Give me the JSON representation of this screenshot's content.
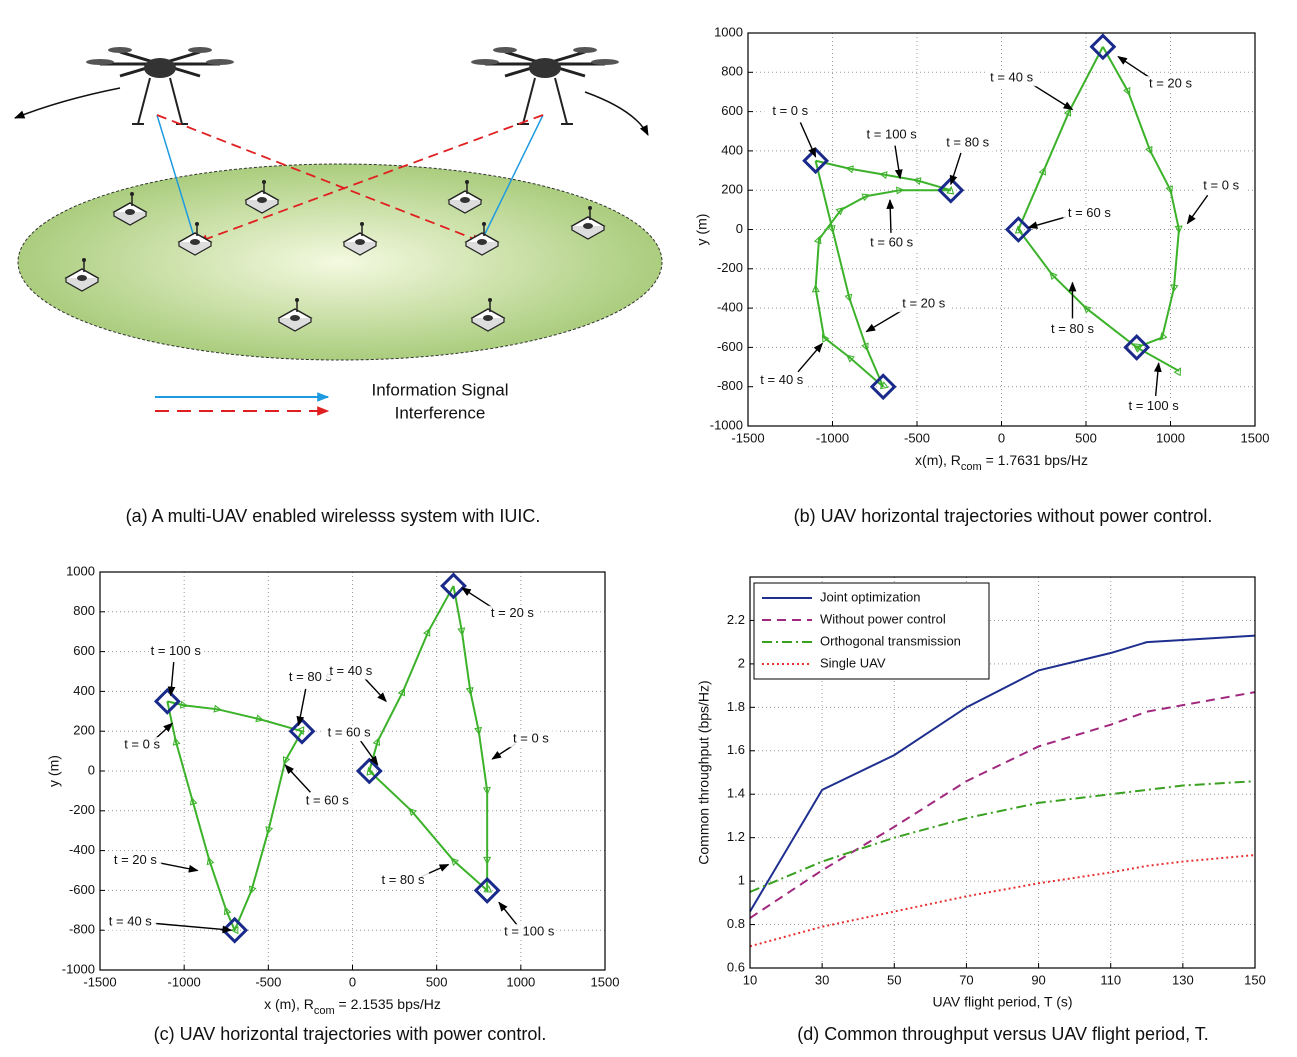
{
  "diagram": {
    "caption": "(a) A multi-UAV enabled wirelesss system with IUIC.",
    "legend": [
      "Information Signal",
      "Interference"
    ]
  },
  "chart_data": [
    {
      "type": "line",
      "caption": "(b) UAV horizontal trajectories without power control.",
      "xlabel": [
        "x(m), R",
        "com",
        " = 1.7631 bps/Hz"
      ],
      "ylabel": "y (m)",
      "xlim": [
        -1500,
        1500
      ],
      "ylim": [
        -1000,
        1000
      ],
      "xticks": [
        -1500,
        -1000,
        -500,
        0,
        500,
        1000,
        1500
      ],
      "yticks": [
        -1000,
        -800,
        -600,
        -400,
        -200,
        0,
        200,
        400,
        600,
        800,
        1000
      ],
      "grid": true,
      "direction_markers": true,
      "series": [
        {
          "color": "#3cb22a",
          "x": [
            -1100,
            -1000,
            -900,
            -800,
            -700,
            -900,
            -1050,
            -1100,
            -1080,
            -950,
            -800,
            -600,
            -300,
            -500,
            -700,
            -900,
            -1100
          ],
          "values": [
            350,
            0,
            -350,
            -600,
            -800,
            -650,
            -550,
            -300,
            -50,
            100,
            170,
            200,
            200,
            250,
            280,
            310,
            350
          ]
        },
        {
          "color": "#3cb22a",
          "x": [
            600,
            750,
            880,
            1000,
            1050,
            1020,
            950,
            800,
            1050,
            800,
            500,
            300,
            100,
            250,
            400,
            600
          ],
          "values": [
            930,
            700,
            400,
            200,
            0,
            -300,
            -550,
            -600,
            -720,
            -600,
            -400,
            -230,
            0,
            300,
            600,
            930
          ]
        }
      ],
      "markers": {
        "color": "#1a2a8a",
        "x": [
          -1100,
          -300,
          -700,
          600,
          100,
          800
        ],
        "values": [
          350,
          200,
          -800,
          930,
          0,
          -600
        ]
      },
      "annotations": [
        {
          "text": "t = 0 s",
          "xy": [
            -1100,
            370
          ],
          "xytext": [
            -1250,
            600
          ]
        },
        {
          "text": "t = 100 s",
          "xy": [
            -600,
            260
          ],
          "xytext": [
            -650,
            480
          ]
        },
        {
          "text": "t = 80 s",
          "xy": [
            -300,
            230
          ],
          "xytext": [
            -200,
            440
          ]
        },
        {
          "text": "t = 60 s",
          "xy": [
            -660,
            150
          ],
          "xytext": [
            -650,
            -70
          ]
        },
        {
          "text": "t = 20 s",
          "xy": [
            -800,
            -520
          ],
          "xytext": [
            -460,
            -380
          ]
        },
        {
          "text": "t = 40 s",
          "xy": [
            -1060,
            -580
          ],
          "xytext": [
            -1300,
            -770
          ]
        },
        {
          "text": "t = 40 s",
          "xy": [
            420,
            610
          ],
          "xytext": [
            60,
            770
          ]
        },
        {
          "text": "t = 20 s",
          "xy": [
            690,
            880
          ],
          "xytext": [
            1000,
            740
          ]
        },
        {
          "text": "t = 0 s",
          "xy": [
            1100,
            30
          ],
          "xytext": [
            1300,
            220
          ]
        },
        {
          "text": "t = 60 s",
          "xy": [
            160,
            10
          ],
          "xytext": [
            520,
            80
          ]
        },
        {
          "text": "t = 80 s",
          "xy": [
            420,
            -270
          ],
          "xytext": [
            420,
            -510
          ]
        },
        {
          "text": "t = 100 s",
          "xy": [
            930,
            -680
          ],
          "xytext": [
            900,
            -900
          ]
        }
      ]
    },
    {
      "type": "line",
      "caption": "(c) UAV horizontal trajectories with power control.",
      "xlabel": [
        "x (m), R",
        "com",
        " = 2.1535 bps/Hz"
      ],
      "ylabel": "y (m)",
      "xlim": [
        -1500,
        1500
      ],
      "ylim": [
        -1000,
        1000
      ],
      "xticks": [
        -1500,
        -1000,
        -500,
        0,
        500,
        1000,
        1500
      ],
      "yticks": [
        -1000,
        -800,
        -600,
        -400,
        -200,
        0,
        200,
        400,
        600,
        800,
        1000
      ],
      "grid": true,
      "direction_markers": true,
      "series": [
        {
          "color": "#3cb22a",
          "x": [
            -1100,
            -1000,
            -800,
            -550,
            -300,
            -400,
            -500,
            -600,
            -700,
            -750,
            -850,
            -950,
            -1050,
            -1100
          ],
          "values": [
            350,
            330,
            310,
            260,
            200,
            50,
            -300,
            -600,
            -800,
            -700,
            -450,
            -150,
            150,
            350
          ]
        },
        {
          "color": "#3cb22a",
          "x": [
            600,
            650,
            700,
            750,
            800,
            800,
            800,
            600,
            350,
            100,
            150,
            300,
            450,
            600
          ],
          "values": [
            930,
            700,
            400,
            200,
            -100,
            -450,
            -600,
            -450,
            -200,
            0,
            150,
            400,
            700,
            930
          ]
        }
      ],
      "markers": {
        "color": "#1a2a8a",
        "x": [
          -1100,
          -300,
          -700,
          600,
          100,
          800
        ],
        "values": [
          350,
          200,
          -800,
          930,
          0,
          -600
        ]
      },
      "annotations": [
        {
          "text": "t = 100 s",
          "xy": [
            -1080,
            380
          ],
          "xytext": [
            -1050,
            600
          ]
        },
        {
          "text": "t = 0 s",
          "xy": [
            -1070,
            240
          ],
          "xytext": [
            -1250,
            130
          ]
        },
        {
          "text": "t = 80 s",
          "xy": [
            -320,
            230
          ],
          "xytext": [
            -250,
            470
          ]
        },
        {
          "text": "t = 60 s",
          "xy": [
            -400,
            30
          ],
          "xytext": [
            -150,
            -150
          ]
        },
        {
          "text": "t = 20 s",
          "xy": [
            -920,
            -500
          ],
          "xytext": [
            -1290,
            -450
          ]
        },
        {
          "text": "t = 40 s",
          "xy": [
            -720,
            -800
          ],
          "xytext": [
            -1320,
            -760
          ]
        },
        {
          "text": "t = 40 s",
          "xy": [
            200,
            350
          ],
          "xytext": [
            -10,
            500
          ]
        },
        {
          "text": "t = 20 s",
          "xy": [
            650,
            920
          ],
          "xytext": [
            950,
            790
          ]
        },
        {
          "text": "t = 60 s",
          "xy": [
            150,
            30
          ],
          "xytext": [
            -20,
            190
          ]
        },
        {
          "text": "t = 0 s",
          "xy": [
            830,
            60
          ],
          "xytext": [
            1060,
            160
          ]
        },
        {
          "text": "t = 80 s",
          "xy": [
            570,
            -470
          ],
          "xytext": [
            300,
            -550
          ]
        },
        {
          "text": "t = 100 s",
          "xy": [
            870,
            -660
          ],
          "xytext": [
            1050,
            -810
          ]
        }
      ]
    },
    {
      "type": "line",
      "caption": "(d) Common throughput versus UAV flight period, T.",
      "xlabel": "UAV flight period, T (s)",
      "ylabel": "Common throughput (bps/Hz)",
      "xlim": [
        10,
        150
      ],
      "ylim": [
        0.6,
        2.4
      ],
      "xticks": [
        10,
        30,
        50,
        70,
        90,
        110,
        130,
        150
      ],
      "yticks": [
        0.6,
        0.8,
        1,
        1.2,
        1.4,
        1.6,
        1.8,
        2,
        2.2
      ],
      "grid": true,
      "legend": "upper left",
      "series": [
        {
          "name": "Joint optimization",
          "color": "#1f2f8f",
          "line_style": "solid",
          "x": [
            10,
            30,
            50,
            70,
            90,
            110,
            120,
            130,
            150
          ],
          "values": [
            0.86,
            1.42,
            1.58,
            1.8,
            1.97,
            2.05,
            2.1,
            2.11,
            2.13
          ]
        },
        {
          "name": "Without power control",
          "color": "#a0287e",
          "line_style": "dashed",
          "x": [
            10,
            30,
            50,
            70,
            90,
            110,
            120,
            130,
            150
          ],
          "values": [
            0.83,
            1.05,
            1.25,
            1.46,
            1.62,
            1.72,
            1.78,
            1.81,
            1.87
          ]
        },
        {
          "name": "Orthogonal transmission",
          "color": "#3aa020",
          "line_style": "dashdot",
          "x": [
            10,
            30,
            50,
            70,
            90,
            110,
            120,
            130,
            150
          ],
          "values": [
            0.95,
            1.09,
            1.2,
            1.29,
            1.36,
            1.4,
            1.42,
            1.44,
            1.46
          ]
        },
        {
          "name": "Single UAV",
          "color": "#e83030",
          "line_style": "dotted",
          "x": [
            10,
            30,
            50,
            70,
            90,
            110,
            120,
            130,
            150
          ],
          "values": [
            0.7,
            0.79,
            0.86,
            0.93,
            0.99,
            1.04,
            1.07,
            1.09,
            1.12
          ]
        }
      ]
    }
  ]
}
